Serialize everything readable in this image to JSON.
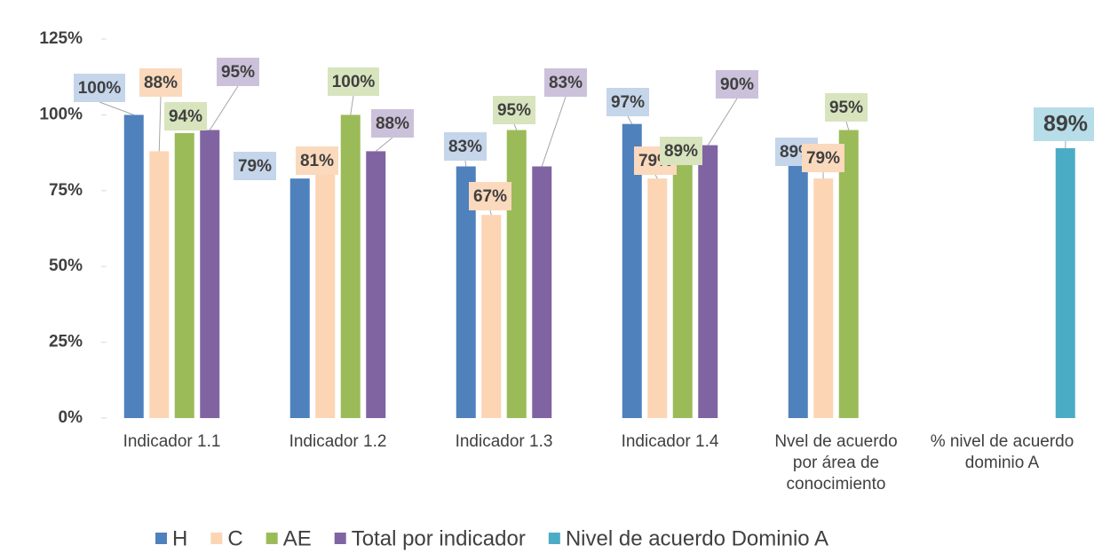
{
  "chart_data": {
    "type": "bar",
    "categories": [
      "Indicador 1.1",
      "Indicador 1.2",
      "Indicador 1.3",
      "Indicador 1.4",
      "Nvel de acuerdo por área de conocimiento",
      "% nivel de acuerdo dominio A"
    ],
    "series": [
      {
        "name": "H",
        "color": "#4f81bd",
        "values": [
          100,
          79,
          83,
          97,
          89,
          null
        ],
        "value_labels": [
          "100%",
          "79%",
          "83%",
          "97%",
          "89%",
          null
        ]
      },
      {
        "name": "C",
        "color": "#fcd5b5",
        "values": [
          88,
          81,
          67,
          79,
          79,
          null
        ],
        "value_labels": [
          "88%",
          "81%",
          "67%",
          "79%",
          "79%",
          null
        ]
      },
      {
        "name": "AE",
        "color": "#9bbb59",
        "values": [
          94,
          100,
          95,
          89,
          95,
          null
        ],
        "value_labels": [
          "94%",
          "100%",
          "95%",
          "89%",
          "95%",
          null
        ]
      },
      {
        "name": "Total por indicador",
        "color": "#8064a2",
        "values": [
          95,
          88,
          83,
          90,
          null,
          null
        ],
        "value_labels": [
          "95%",
          "88%",
          "83%",
          "90%",
          null,
          null
        ]
      },
      {
        "name": "Nivel de acuerdo Dominio A",
        "color": "#4bacc6",
        "values": [
          null,
          null,
          null,
          null,
          null,
          89
        ],
        "value_labels": [
          null,
          null,
          null,
          null,
          null,
          "89%"
        ]
      }
    ],
    "ylim": [
      0,
      125
    ],
    "yticks": [
      {
        "value": 0,
        "label": "0%"
      },
      {
        "value": 25,
        "label": "25%"
      },
      {
        "value": 50,
        "label": "50%"
      },
      {
        "value": 75,
        "label": "75%"
      },
      {
        "value": 100,
        "label": "100%"
      },
      {
        "value": 125,
        "label": "125%"
      }
    ],
    "legend": "bottom"
  }
}
